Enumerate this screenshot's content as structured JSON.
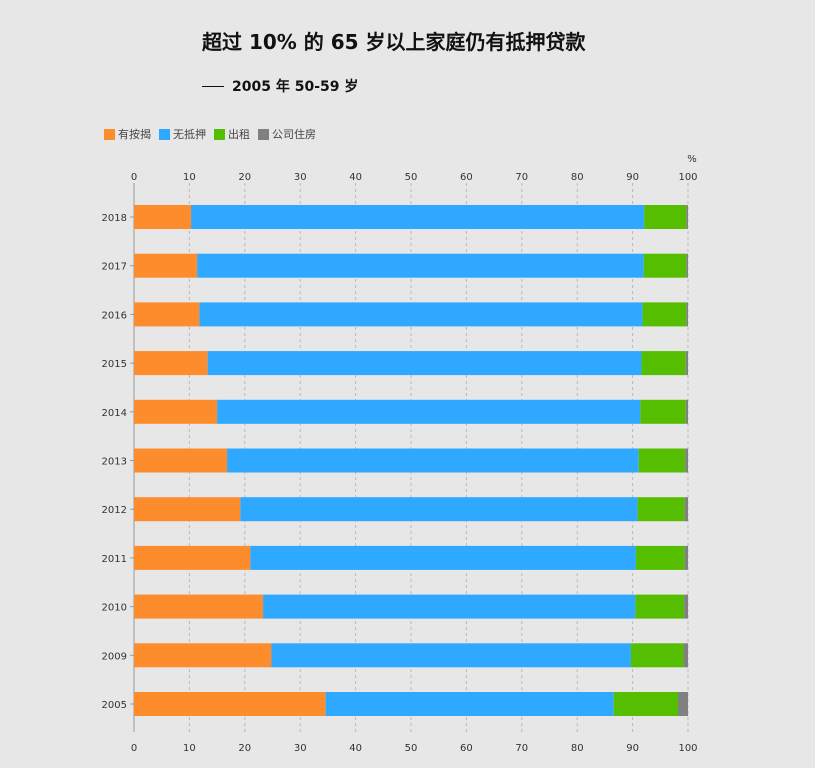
{
  "title": "超过 10% 的 65 岁以上家庭仍有抵押贷款",
  "subtitle": "2005 年 50-59 岁",
  "unit_label": "%",
  "chart_data": {
    "type": "bar",
    "orientation": "horizontal",
    "stacked": true,
    "categories": [
      "2018",
      "2017",
      "2016",
      "2015",
      "2014",
      "2013",
      "2012",
      "2011",
      "2010",
      "2009",
      "2005"
    ],
    "series": [
      {
        "name": "有按揭",
        "color": "#fd8c2c",
        "values": [
          10.3,
          11.4,
          11.8,
          13.3,
          15.0,
          16.8,
          19.2,
          21.0,
          23.3,
          24.8,
          34.6
        ]
      },
      {
        "name": "无抵押",
        "color": "#2fa8ff",
        "values": [
          81.8,
          80.6,
          80.0,
          78.3,
          76.4,
          74.3,
          71.7,
          69.6,
          67.2,
          64.9,
          52.0
        ]
      },
      {
        "name": "出租",
        "color": "#56be00",
        "values": [
          7.6,
          7.7,
          7.9,
          8.0,
          8.2,
          8.4,
          8.5,
          8.8,
          8.8,
          9.5,
          11.6
        ]
      },
      {
        "name": "公司住房",
        "color": "#808080",
        "values": [
          0.3,
          0.3,
          0.3,
          0.4,
          0.4,
          0.5,
          0.6,
          0.6,
          0.7,
          0.8,
          1.8
        ]
      }
    ],
    "xlim": [
      0,
      100
    ],
    "xticks": [
      0,
      10,
      20,
      30,
      40,
      50,
      60,
      70,
      80,
      90,
      100
    ],
    "grid": true,
    "legend_position": "top-left"
  }
}
